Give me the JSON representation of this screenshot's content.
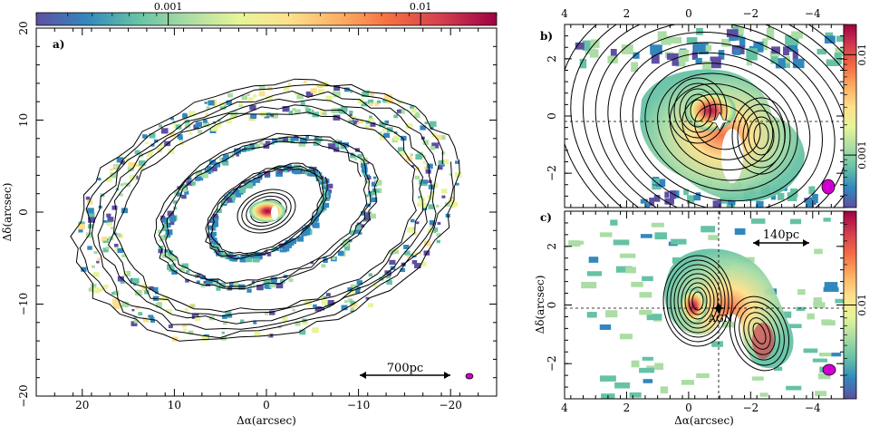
{
  "chart_data": [
    {
      "type": "heatmap",
      "panel_label": "a)",
      "xlabel": "Δα(arcsec)",
      "ylabel": "Δδ(arcsec)",
      "xlim": [
        25,
        -25
      ],
      "ylim": [
        -20,
        20
      ],
      "x_ticks": [
        "20",
        "10",
        "0",
        "−10",
        "−20"
      ],
      "x_tick_values": [
        20,
        10,
        0,
        -10,
        -20
      ],
      "y_ticks": [
        "−20",
        "−10",
        "0",
        "10",
        "20"
      ],
      "y_tick_values": [
        -20,
        -10,
        0,
        10,
        20
      ],
      "colorbar": {
        "position": "top",
        "scale": "log",
        "range": [
          0.0003,
          0.02
        ],
        "tick_labels": [
          "0.001",
          "0.01"
        ],
        "tick_values": [
          0.001,
          0.01
        ]
      },
      "scalebar": {
        "label": "700pc",
        "x_from": -10,
        "x_to": -19.5,
        "y": -18.5
      },
      "beam_ellipse": {
        "x": -22,
        "y": -18.5
      },
      "grid": false
    },
    {
      "type": "heatmap",
      "panel_label": "b)",
      "xlabel": "",
      "ylabel": "",
      "xlim": [
        4,
        -5
      ],
      "ylim": [
        -3.2,
        3.2
      ],
      "x_ticks": [
        "4",
        "2",
        "0",
        "−2",
        "−4"
      ],
      "x_tick_values": [
        4,
        2,
        0,
        -2,
        -4
      ],
      "y_ticks": [
        "−2",
        "0",
        "2"
      ],
      "y_tick_values": [
        -2,
        0,
        2
      ],
      "colorbar": {
        "position": "right",
        "scale": "log",
        "range": [
          0.0003,
          0.02
        ],
        "tick_labels": [
          "0.001",
          "0.01"
        ],
        "tick_values": [
          0.001,
          0.01
        ]
      },
      "crosshair": {
        "x": 0.8,
        "y": -0.1
      },
      "beam_ellipse": {
        "x": -4.5,
        "y": -2.4
      },
      "grid": false
    },
    {
      "type": "heatmap",
      "panel_label": "c)",
      "xlabel": "Δα(arcsec)",
      "ylabel": "Δδ(arcsec)",
      "xlim": [
        4,
        -5
      ],
      "ylim": [
        -3.2,
        3.2
      ],
      "x_ticks": [
        "4",
        "2",
        "0",
        "−2",
        "−4"
      ],
      "x_tick_values": [
        4,
        2,
        0,
        -2,
        -4
      ],
      "y_ticks": [
        "−2",
        "0",
        "2"
      ],
      "y_tick_values": [
        -2,
        0,
        2
      ],
      "colorbar": {
        "position": "right",
        "scale": "log",
        "range": [
          0.002,
          0.05
        ],
        "tick_labels": [
          "0.01"
        ],
        "tick_values": [
          0.01
        ]
      },
      "crosshair": {
        "x": 0.8,
        "y": -0.1
      },
      "annotation": {
        "text": "AGN",
        "x": 0.8,
        "y": -0.3
      },
      "scalebar": {
        "label": "140pc",
        "x_from": -1.8,
        "x_to": -3.9,
        "y": 2.15
      },
      "beam_ellipse": {
        "x": -4.5,
        "y": -2.4
      },
      "grid": false
    }
  ],
  "colormap": [
    "#5e4fa2",
    "#3288bd",
    "#66c2a5",
    "#abdda4",
    "#e6f598",
    "#fee08b",
    "#fdae61",
    "#f46d43",
    "#d53e4f",
    "#9e0142"
  ]
}
